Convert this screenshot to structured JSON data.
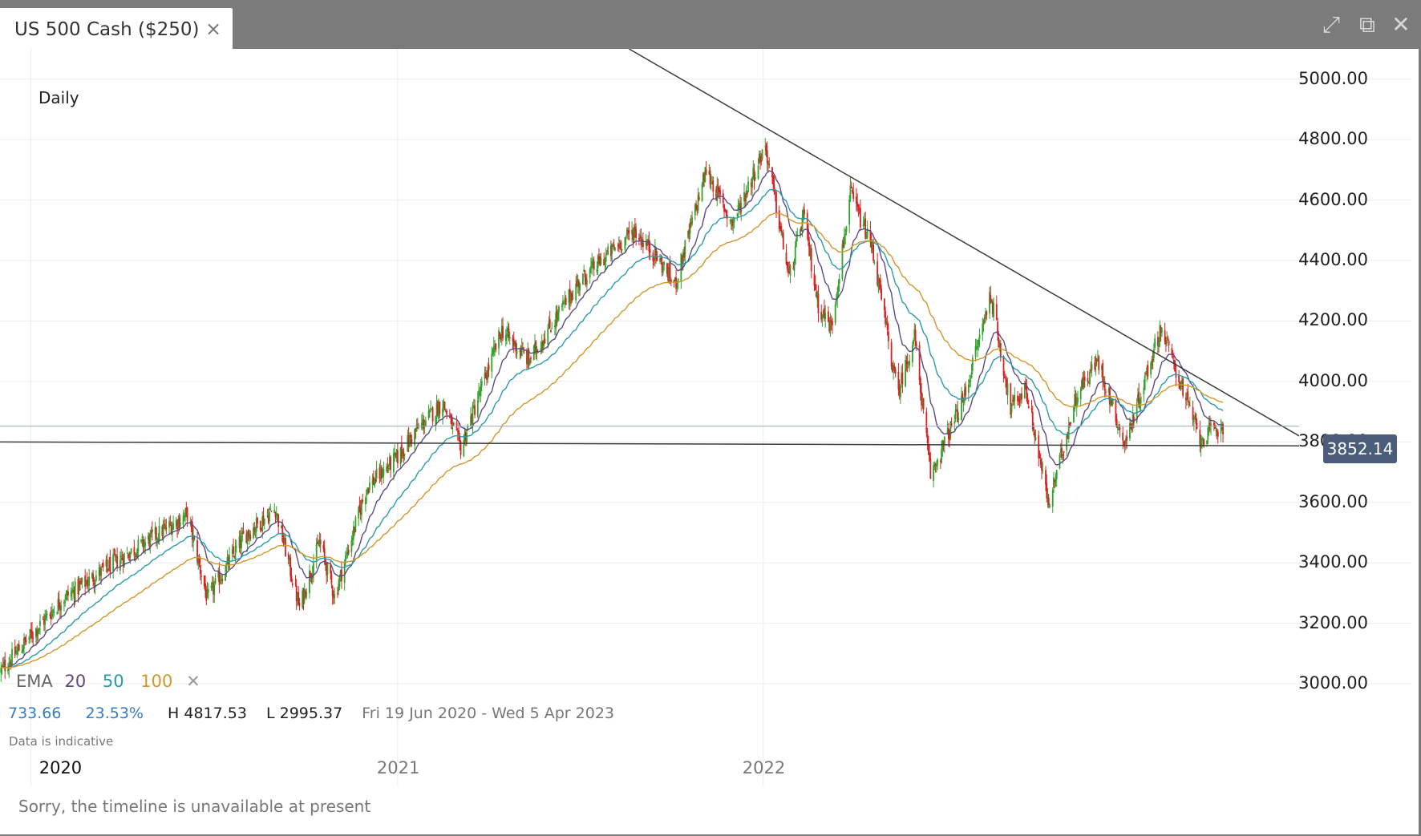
{
  "window": {
    "tab_title": "US 500 Cash ($250)",
    "tab_close": "×",
    "controls": {
      "expand": "⤢",
      "popout": "⧉",
      "close": "✕"
    }
  },
  "chart_data": {
    "type": "candlestick",
    "timeframe": "Daily",
    "x_range": [
      "2019-12-01",
      "2023-06-20"
    ],
    "ylim": [
      2820,
      5100
    ],
    "y_ticks": [
      3000,
      3200,
      3400,
      3600,
      3800,
      4000,
      4200,
      4400,
      4600,
      4800,
      5000
    ],
    "y_tick_labels": [
      "3000.00",
      "3200.00",
      "3400.00",
      "3600.00",
      "3800.00",
      "4000.00",
      "4200.00",
      "4400.00",
      "4600.00",
      "4800.00",
      "5000.00"
    ],
    "x_ticks": [
      {
        "date": "2020-01-01",
        "label": "2020",
        "bold": true
      },
      {
        "date": "2021-01-01",
        "label": "2021",
        "bold": false
      },
      {
        "date": "2022-01-01",
        "label": "2022",
        "bold": false
      }
    ],
    "price_path": [
      {
        "date": "2019-12-01",
        "price": 3040
      },
      {
        "date": "2020-02-01",
        "price": 3280
      },
      {
        "date": "2020-03-15",
        "price": 3380
      },
      {
        "date": "2020-06-05",
        "price": 3560
      },
      {
        "date": "2020-06-25",
        "price": 3280
      },
      {
        "date": "2020-08-01",
        "price": 3490
      },
      {
        "date": "2020-09-01",
        "price": 3580
      },
      {
        "date": "2020-09-25",
        "price": 3250
      },
      {
        "date": "2020-10-15",
        "price": 3470
      },
      {
        "date": "2020-10-30",
        "price": 3290
      },
      {
        "date": "2020-12-01",
        "price": 3650
      },
      {
        "date": "2021-01-01",
        "price": 3750
      },
      {
        "date": "2021-01-20",
        "price": 3840
      },
      {
        "date": "2021-02-15",
        "price": 3930
      },
      {
        "date": "2021-03-05",
        "price": 3780
      },
      {
        "date": "2021-04-15",
        "price": 4170
      },
      {
        "date": "2021-05-12",
        "price": 4070
      },
      {
        "date": "2021-07-01",
        "price": 4330
      },
      {
        "date": "2021-08-25",
        "price": 4500
      },
      {
        "date": "2021-09-15",
        "price": 4420
      },
      {
        "date": "2021-10-05",
        "price": 4320
      },
      {
        "date": "2021-11-05",
        "price": 4700
      },
      {
        "date": "2021-12-01",
        "price": 4520
      },
      {
        "date": "2022-01-03",
        "price": 4780
      },
      {
        "date": "2022-01-27",
        "price": 4340
      },
      {
        "date": "2022-02-10",
        "price": 4550
      },
      {
        "date": "2022-02-25",
        "price": 4250
      },
      {
        "date": "2022-03-10",
        "price": 4180
      },
      {
        "date": "2022-03-29",
        "price": 4620
      },
      {
        "date": "2022-04-20",
        "price": 4440
      },
      {
        "date": "2022-05-15",
        "price": 3960
      },
      {
        "date": "2022-06-01",
        "price": 4150
      },
      {
        "date": "2022-06-17",
        "price": 3690
      },
      {
        "date": "2022-07-20",
        "price": 3940
      },
      {
        "date": "2022-08-16",
        "price": 4290
      },
      {
        "date": "2022-09-05",
        "price": 3910
      },
      {
        "date": "2022-09-20",
        "price": 3980
      },
      {
        "date": "2022-10-13",
        "price": 3590
      },
      {
        "date": "2022-11-10",
        "price": 3960
      },
      {
        "date": "2022-12-01",
        "price": 4070
      },
      {
        "date": "2022-12-28",
        "price": 3790
      },
      {
        "date": "2023-02-02",
        "price": 4180
      },
      {
        "date": "2023-03-13",
        "price": 3810
      },
      {
        "date": "2023-04-05",
        "price": 3852
      }
    ],
    "lines": [
      {
        "name": "descending trendline",
        "color": "#3c3c3c",
        "p1": {
          "date": "2021-08-20",
          "price": 5100
        },
        "p2": {
          "date": "2023-06-20",
          "price": 3820
        }
      },
      {
        "name": "horizontal support",
        "color": "#3c3c3c",
        "p1": {
          "date": "2019-12-01",
          "price": 3800
        },
        "p2": {
          "date": "2023-06-20",
          "price": 3787
        }
      },
      {
        "name": "last price line",
        "color": "#9aa5bf",
        "p1": {
          "date": "2019-12-01",
          "price": 3852
        },
        "p2": {
          "date": "2023-06-20",
          "price": 3852
        }
      }
    ],
    "ema": {
      "label": "EMA",
      "periods": [
        {
          "period": 20,
          "label": "20",
          "color": "#5d4a82"
        },
        {
          "period": 50,
          "label": "50",
          "color": "#2a9ba8"
        },
        {
          "period": 100,
          "label": "100",
          "color": "#d1972b"
        }
      ]
    },
    "colors": {
      "up": "#33a02c",
      "down": "#d62222",
      "grid": "#ececec"
    },
    "last_price": "3852.14",
    "stats": {
      "change": "733.66",
      "change_pct": "23.53%",
      "high": "H 4817.53",
      "low": "L 2995.37",
      "range": "Fri 19 Jun 2020 - Wed 5 Apr 2023"
    }
  },
  "footer": {
    "indicative": "Data is indicative",
    "timeline": "Sorry, the timeline is unavailable at present"
  }
}
